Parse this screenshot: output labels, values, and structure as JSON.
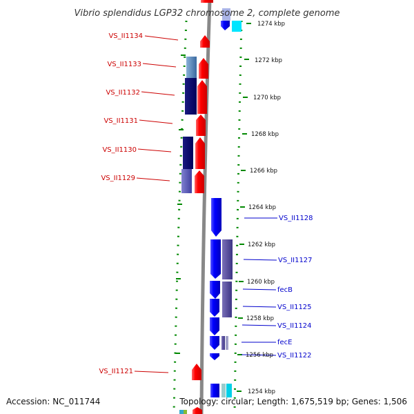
{
  "title": "Vibrio splendidus LGP32 chromosome 2, complete genome",
  "footer": {
    "accession": "Accession: NC_011744",
    "summary": "Topology: circular; Length: 1,675,519 bp; Genes: 1,506"
  },
  "scale_labels": [
    "1274 kbp",
    "1272 kbp",
    "1270 kbp",
    "1268 kbp",
    "1266 kbp",
    "1264 kbp",
    "1262 kbp",
    "1260 kbp",
    "1258 kbp",
    "1256 kbp",
    "1254 kbp"
  ],
  "left_gene_labels": [
    "VS_II1134",
    "VS_II1133",
    "VS_II1132",
    "VS_II1131",
    "VS_II1130",
    "VS_II1129",
    "VS_II1121"
  ],
  "right_gene_labels": [
    "VS_II1128",
    "VS_II1127",
    "fecB",
    "VS_II1125",
    "VS_II1124",
    "fecE",
    "VS_II1122"
  ],
  "colors": {
    "forward_strand": "#ff0000",
    "reverse_strand": "#0000ff",
    "backbone": "#888888",
    "tick": "#008800",
    "left_label": "#cc0000",
    "right_label": "#0000cc"
  }
}
